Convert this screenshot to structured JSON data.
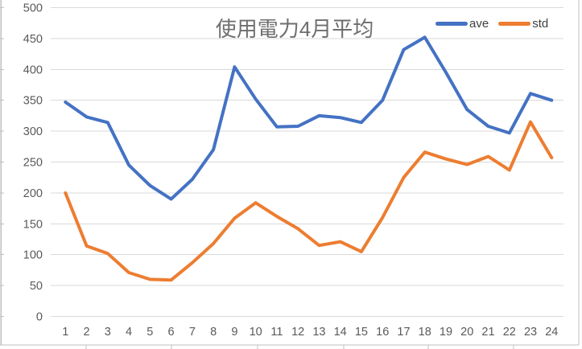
{
  "title": "使用電力4月平均",
  "legend": {
    "entries": [
      {
        "label": "ave",
        "color": "#4472C4"
      },
      {
        "label": "std",
        "color": "#ED7D31"
      }
    ]
  },
  "axes": {
    "y_tick_labels": [
      "0",
      "50",
      "100",
      "150",
      "200",
      "250",
      "300",
      "350",
      "400",
      "450",
      "500"
    ],
    "x_tick_labels": [
      "1",
      "2",
      "3",
      "4",
      "5",
      "6",
      "7",
      "8",
      "9",
      "10",
      "11",
      "12",
      "13",
      "14",
      "15",
      "16",
      "17",
      "18",
      "19",
      "20",
      "21",
      "22",
      "23",
      "24"
    ]
  },
  "colors": {
    "ave": "#4472C4",
    "std": "#ED7D31",
    "gridline": "#D9D9D9",
    "axis_line": "#BFBFBF",
    "axis_text": "#595959",
    "title_text": "#6e6e6e",
    "legend_text": "#404040"
  },
  "chart_data": {
    "type": "line",
    "title": "使用電力4月平均",
    "xlabel": "",
    "ylabel": "",
    "x": [
      1,
      2,
      3,
      4,
      5,
      6,
      7,
      8,
      9,
      10,
      11,
      12,
      13,
      14,
      15,
      16,
      17,
      18,
      19,
      20,
      21,
      22,
      23,
      24
    ],
    "series": [
      {
        "name": "ave",
        "color": "#4472C4",
        "values": [
          347,
          323,
          314,
          245,
          212,
          190,
          222,
          270,
          404,
          352,
          307,
          308,
          325,
          322,
          314,
          350,
          432,
          452,
          395,
          335,
          308,
          297,
          361,
          350
        ]
      },
      {
        "name": "std",
        "color": "#ED7D31",
        "values": [
          200,
          114,
          102,
          71,
          60,
          59,
          87,
          118,
          159,
          184,
          162,
          142,
          115,
          121,
          105,
          160,
          225,
          266,
          255,
          246,
          259,
          237,
          315,
          257
        ]
      }
    ],
    "ylim": [
      0,
      500
    ],
    "ytick_interval": 50,
    "grid": true,
    "legend_position": "top-right"
  }
}
